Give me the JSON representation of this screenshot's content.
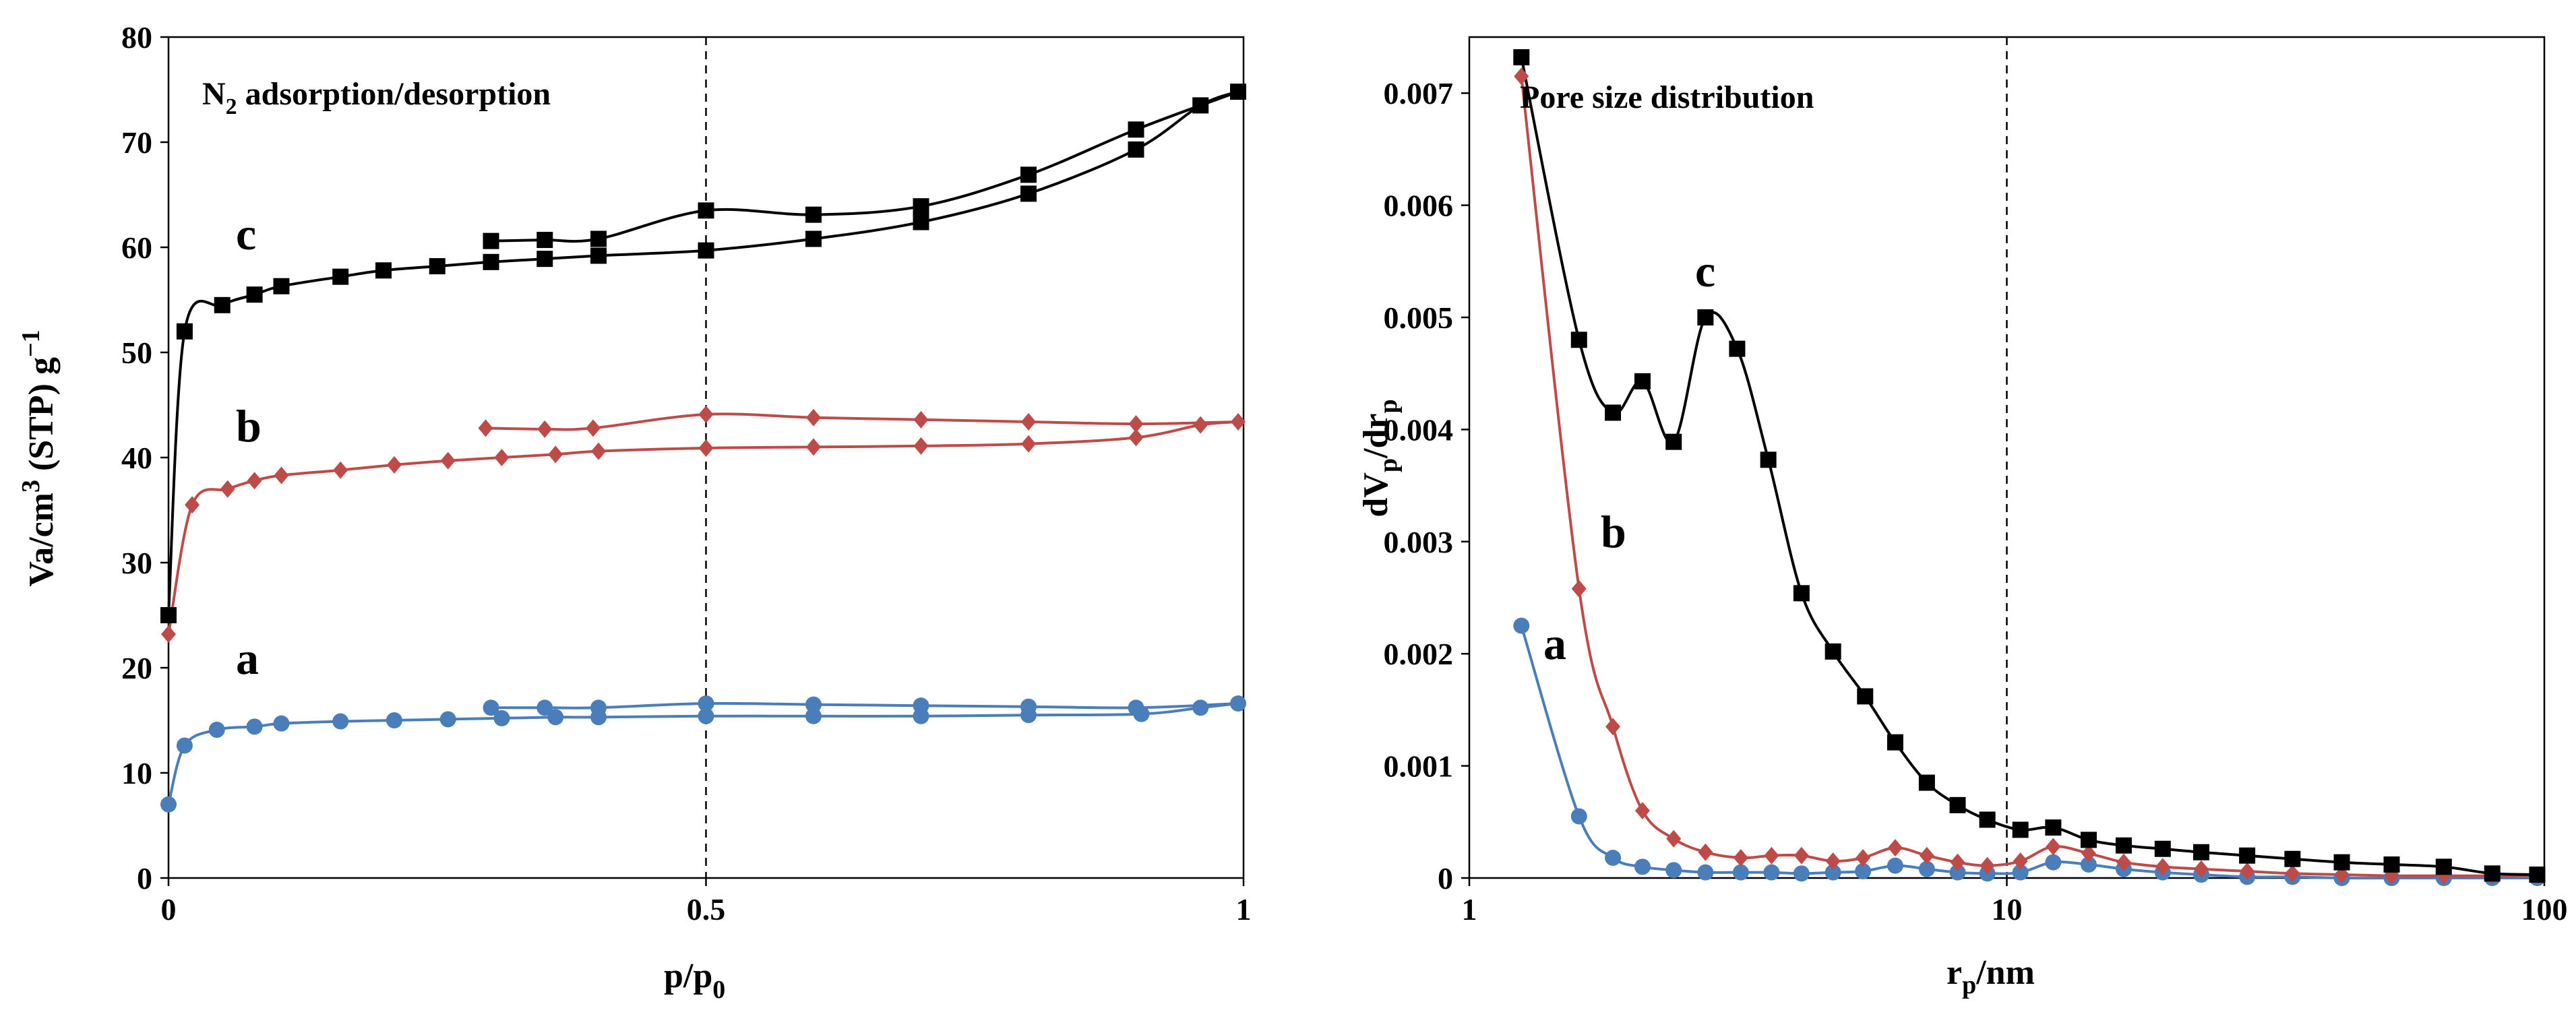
{
  "colors": {
    "a": "#4a7ebb",
    "b": "#be4b48",
    "c": "#000000"
  },
  "chart_data": [
    {
      "type": "line",
      "panel_label": "N2 adsorption/desorption",
      "xlabel": "p/p0",
      "ylabel": "Va/cm3 (STP) g−1",
      "xlim": [
        0,
        1
      ],
      "ylim": [
        0,
        80
      ],
      "x_ticks": [
        "0",
        "0.5",
        "1"
      ],
      "y_ticks": [
        "0",
        "10",
        "20",
        "30",
        "40",
        "50",
        "60",
        "70",
        "80"
      ],
      "vline": 0.5,
      "series": [
        {
          "name": "a",
          "color": "#4a7ebb",
          "marker": "circle",
          "adsorption": [
            [
              0,
              7
            ],
            [
              0.015,
              12.6
            ],
            [
              0.045,
              14.1
            ],
            [
              0.08,
              14.4
            ],
            [
              0.105,
              14.7
            ],
            [
              0.16,
              14.9
            ],
            [
              0.21,
              15.0
            ],
            [
              0.26,
              15.1
            ],
            [
              0.31,
              15.2
            ],
            [
              0.36,
              15.3
            ],
            [
              0.4,
              15.3
            ],
            [
              0.5,
              15.4
            ],
            [
              0.6,
              15.4
            ],
            [
              0.7,
              15.4
            ],
            [
              0.8,
              15.5
            ],
            [
              0.905,
              15.6
            ],
            [
              0.96,
              16.2
            ],
            [
              0.995,
              16.6
            ]
          ],
          "desorption": [
            [
              0.995,
              16.6
            ],
            [
              0.9,
              16.2
            ],
            [
              0.8,
              16.3
            ],
            [
              0.7,
              16.4
            ],
            [
              0.6,
              16.5
            ],
            [
              0.5,
              16.6
            ],
            [
              0.4,
              16.2
            ],
            [
              0.35,
              16.2
            ],
            [
              0.3,
              16.2
            ]
          ]
        },
        {
          "name": "b",
          "color": "#be4b48",
          "marker": "diamond",
          "adsorption": [
            [
              0,
              23.2
            ],
            [
              0.022,
              35.5
            ],
            [
              0.055,
              37.0
            ],
            [
              0.08,
              37.8
            ],
            [
              0.105,
              38.3
            ],
            [
              0.16,
              38.8
            ],
            [
              0.21,
              39.3
            ],
            [
              0.26,
              39.7
            ],
            [
              0.31,
              40.0
            ],
            [
              0.36,
              40.3
            ],
            [
              0.4,
              40.6
            ],
            [
              0.5,
              40.9
            ],
            [
              0.6,
              41.0
            ],
            [
              0.7,
              41.1
            ],
            [
              0.8,
              41.3
            ],
            [
              0.9,
              41.9
            ],
            [
              0.96,
              43.1
            ],
            [
              0.995,
              43.4
            ]
          ],
          "desorption": [
            [
              0.995,
              43.4
            ],
            [
              0.9,
              43.2
            ],
            [
              0.8,
              43.4
            ],
            [
              0.7,
              43.6
            ],
            [
              0.6,
              43.8
            ],
            [
              0.5,
              44.1
            ],
            [
              0.395,
              42.8
            ],
            [
              0.35,
              42.7
            ],
            [
              0.295,
              42.8
            ]
          ]
        },
        {
          "name": "c",
          "color": "#000000",
          "marker": "square",
          "adsorption": [
            [
              0,
              25
            ],
            [
              0.015,
              52.0
            ],
            [
              0.05,
              54.5
            ],
            [
              0.08,
              55.5
            ],
            [
              0.105,
              56.3
            ],
            [
              0.16,
              57.2
            ],
            [
              0.2,
              57.8
            ],
            [
              0.25,
              58.2
            ],
            [
              0.3,
              58.6
            ],
            [
              0.35,
              58.9
            ],
            [
              0.4,
              59.2
            ],
            [
              0.5,
              59.7
            ],
            [
              0.6,
              60.8
            ],
            [
              0.7,
              62.4
            ],
            [
              0.8,
              65.1
            ],
            [
              0.9,
              69.3
            ],
            [
              0.96,
              73.5
            ],
            [
              0.995,
              74.8
            ]
          ],
          "desorption": [
            [
              0.995,
              74.8
            ],
            [
              0.9,
              71.2
            ],
            [
              0.8,
              66.9
            ],
            [
              0.7,
              63.9
            ],
            [
              0.6,
              63.1
            ],
            [
              0.5,
              63.5
            ],
            [
              0.4,
              60.8
            ],
            [
              0.35,
              60.7
            ],
            [
              0.3,
              60.6
            ]
          ]
        }
      ]
    },
    {
      "type": "line",
      "panel_label": "Pore size distribution",
      "xlabel": "rp/nm",
      "ylabel": "dVp/drp",
      "xscale": "log",
      "xlim": [
        1,
        100
      ],
      "ylim": [
        0,
        0.0075
      ],
      "x_ticks": [
        "1",
        "10",
        "100"
      ],
      "y_ticks": [
        "0",
        "0.001",
        "0.002",
        "0.003",
        "0.004",
        "0.005",
        "0.006",
        "0.007"
      ],
      "vline": 10,
      "series": [
        {
          "name": "a",
          "color": "#4a7ebb",
          "marker": "circle",
          "points": [
            [
              1.25,
              0.00225
            ],
            [
              1.6,
              0.00055
            ],
            [
              1.85,
              0.00018
            ],
            [
              2.1,
              0.0001
            ],
            [
              2.4,
              7e-05
            ],
            [
              2.75,
              5e-05
            ],
            [
              3.2,
              5e-05
            ],
            [
              3.65,
              5e-05
            ],
            [
              4.15,
              4e-05
            ],
            [
              4.75,
              5e-05
            ],
            [
              5.4,
              6e-05
            ],
            [
              6.2,
              0.00011
            ],
            [
              7.1,
              8e-05
            ],
            [
              8.1,
              5e-05
            ],
            [
              9.2,
              4e-05
            ],
            [
              10.6,
              5e-05
            ],
            [
              12.2,
              0.00014
            ],
            [
              14.2,
              0.00012
            ],
            [
              16.5,
              8e-05
            ],
            [
              19.5,
              5e-05
            ],
            [
              23,
              3e-05
            ],
            [
              28,
              1e-05
            ],
            [
              34,
              1e-05
            ],
            [
              42,
              0.0
            ],
            [
              52,
              0.0
            ],
            [
              65,
              0.0
            ],
            [
              80,
              0.0
            ],
            [
              97,
              0.0
            ]
          ]
        },
        {
          "name": "b",
          "color": "#be4b48",
          "marker": "diamond",
          "points": [
            [
              1.25,
              0.00715
            ],
            [
              1.6,
              0.00258
            ],
            [
              1.85,
              0.00135
            ],
            [
              2.1,
              0.0006
            ],
            [
              2.4,
              0.00035
            ],
            [
              2.75,
              0.00023
            ],
            [
              3.2,
              0.00018
            ],
            [
              3.65,
              0.0002
            ],
            [
              4.15,
              0.0002
            ],
            [
              4.75,
              0.00015
            ],
            [
              5.4,
              0.00018
            ],
            [
              6.2,
              0.00027
            ],
            [
              7.1,
              0.0002
            ],
            [
              8.1,
              0.00014
            ],
            [
              9.2,
              0.00011
            ],
            [
              10.6,
              0.00015
            ],
            [
              12.2,
              0.00028
            ],
            [
              14.2,
              0.00022
            ],
            [
              16.5,
              0.00014
            ],
            [
              19.5,
              0.0001
            ],
            [
              23,
              8e-05
            ],
            [
              28,
              6e-05
            ],
            [
              34,
              4e-05
            ],
            [
              42,
              3e-05
            ],
            [
              52,
              2e-05
            ],
            [
              65,
              2e-05
            ],
            [
              80,
              2e-05
            ],
            [
              97,
              2e-05
            ]
          ]
        },
        {
          "name": "c",
          "color": "#000000",
          "marker": "square",
          "points": [
            [
              1.25,
              0.00732
            ],
            [
              1.6,
              0.0048
            ],
            [
              1.85,
              0.00415
            ],
            [
              2.1,
              0.00443
            ],
            [
              2.4,
              0.00389
            ],
            [
              2.75,
              0.005
            ],
            [
              3.15,
              0.00472
            ],
            [
              3.6,
              0.00373
            ],
            [
              4.15,
              0.00254
            ],
            [
              4.75,
              0.00202
            ],
            [
              5.45,
              0.00162
            ],
            [
              6.2,
              0.00121
            ],
            [
              7.1,
              0.00085
            ],
            [
              8.1,
              0.00065
            ],
            [
              9.2,
              0.00052
            ],
            [
              10.6,
              0.00043
            ],
            [
              12.2,
              0.00045
            ],
            [
              14.2,
              0.00034
            ],
            [
              16.5,
              0.00029
            ],
            [
              19.5,
              0.00026
            ],
            [
              23,
              0.00023
            ],
            [
              28,
              0.0002
            ],
            [
              34,
              0.00017
            ],
            [
              42,
              0.00014
            ],
            [
              52,
              0.00012
            ],
            [
              65,
              0.0001
            ],
            [
              80,
              4e-05
            ],
            [
              97,
              3e-05
            ]
          ]
        }
      ]
    }
  ]
}
